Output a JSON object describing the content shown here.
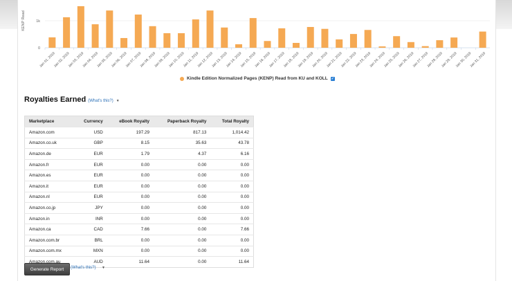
{
  "chart_data": {
    "type": "bar",
    "ylabel": "KENP Read",
    "yticks": [
      "0",
      "1k"
    ],
    "ylim": [
      0,
      1650
    ],
    "categories": [
      "Jan 01, 2019",
      "Jan 02, 2019",
      "Jan 03, 2019",
      "Jan 04, 2019",
      "Jan 05, 2019",
      "Jan 06, 2019",
      "Jan 07, 2019",
      "Jan 08, 2019",
      "Jan 09, 2019",
      "Jan 10, 2019",
      "Jan 11, 2019",
      "Jan 12, 2019",
      "Jan 13, 2019",
      "Jan 14, 2019",
      "Jan 15, 2019",
      "Jan 16, 2019",
      "Jan 17, 2019",
      "Jan 18, 2019",
      "Jan 19, 2019",
      "Jan 20, 2019",
      "Jan 21, 2019",
      "Jan 22, 2019",
      "Jan 23, 2019",
      "Jan 24, 2019",
      "Jan 25, 2019",
      "Jan 26, 2019",
      "Jan 27, 2019",
      "Jan 28, 2019",
      "Jan 29, 2019",
      "Jan 30, 2019",
      "Jan 31, 2019"
    ],
    "values": [
      385,
      1130,
      1540,
      870,
      1380,
      360,
      1230,
      800,
      540,
      540,
      1050,
      1380,
      750,
      130,
      1100,
      250,
      720,
      180,
      770,
      700,
      310,
      510,
      660,
      50,
      430,
      210,
      60,
      280,
      380,
      0,
      600
    ],
    "color": "#f5a953",
    "grid": true,
    "legend": "Kindle Edition Normalized Pages (KENP) Read from KU and KOLL",
    "legend_position": "bottom"
  },
  "royalties": {
    "title": "Royalties Earned",
    "whats_this": "(What's this?)",
    "headers": [
      "Marketplace",
      "Currency",
      "eBook Royalty",
      "Paperback Royalty",
      "Total Royalty"
    ],
    "rows": [
      [
        "Amazon.com",
        "USD",
        "197.29",
        "817.13",
        "1,014.42"
      ],
      [
        "Amazon.co.uk",
        "GBP",
        "8.15",
        "35.63",
        "43.78"
      ],
      [
        "Amazon.de",
        "EUR",
        "1.79",
        "4.37",
        "6.16"
      ],
      [
        "Amazon.fr",
        "EUR",
        "0.00",
        "0.00",
        "0.00"
      ],
      [
        "Amazon.es",
        "EUR",
        "0.00",
        "0.00",
        "0.00"
      ],
      [
        "Amazon.it",
        "EUR",
        "0.00",
        "0.00",
        "0.00"
      ],
      [
        "Amazon.nl",
        "EUR",
        "0.00",
        "0.00",
        "0.00"
      ],
      [
        "Amazon.co.jp",
        "JPY",
        "0.00",
        "0.00",
        "0.00"
      ],
      [
        "Amazon.in",
        "INR",
        "0.00",
        "0.00",
        "0.00"
      ],
      [
        "Amazon.ca",
        "CAD",
        "7.66",
        "0.00",
        "7.66"
      ],
      [
        "Amazon.com.br",
        "BRL",
        "0.00",
        "0.00",
        "0.00"
      ],
      [
        "Amazon.com.mx",
        "MXN",
        "0.00",
        "0.00",
        "0.00"
      ],
      [
        "Amazon.com.au",
        "AUD",
        "11.64",
        "0.00",
        "11.64"
      ]
    ]
  },
  "footer": {
    "generate_report": "Generate Report",
    "whats_this": "(What's this?)"
  }
}
